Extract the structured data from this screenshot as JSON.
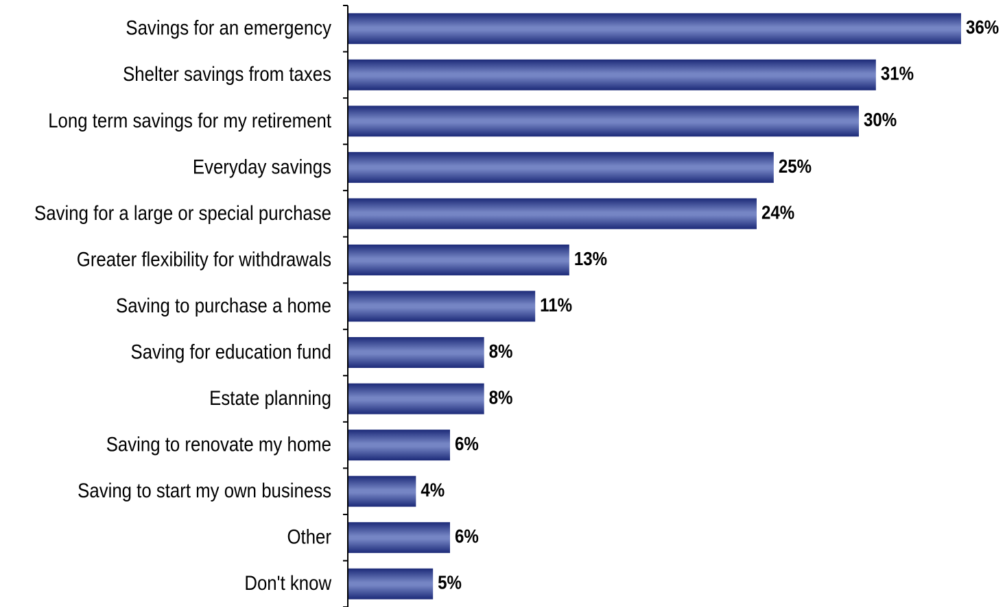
{
  "chart_data": {
    "type": "bar",
    "orientation": "horizontal",
    "categories": [
      "Savings for an emergency",
      "Shelter savings from taxes",
      "Long term savings for my retirement",
      "Everyday savings",
      "Saving for a large or special purchase",
      "Greater flexibility for withdrawals",
      "Saving to purchase a home",
      "Saving for education fund",
      "Estate planning",
      "Saving to renovate my home",
      "Saving to start my own business",
      "Other",
      "Don't know"
    ],
    "values": [
      36,
      31,
      30,
      25,
      24,
      13,
      11,
      8,
      8,
      6,
      4,
      6,
      5
    ],
    "value_labels": [
      "36%",
      "31%",
      "30%",
      "25%",
      "24%",
      "13%",
      "11%",
      "8%",
      "8%",
      "6%",
      "4%",
      "6%",
      "5%"
    ],
    "title": "",
    "xlabel": "",
    "ylabel": "",
    "xlim": [
      0,
      36
    ],
    "grid": false,
    "legend": "none",
    "colors": {
      "bar_edge": "#1c2a78",
      "bar_mid": "#7585c4",
      "axis": "#000000"
    }
  }
}
